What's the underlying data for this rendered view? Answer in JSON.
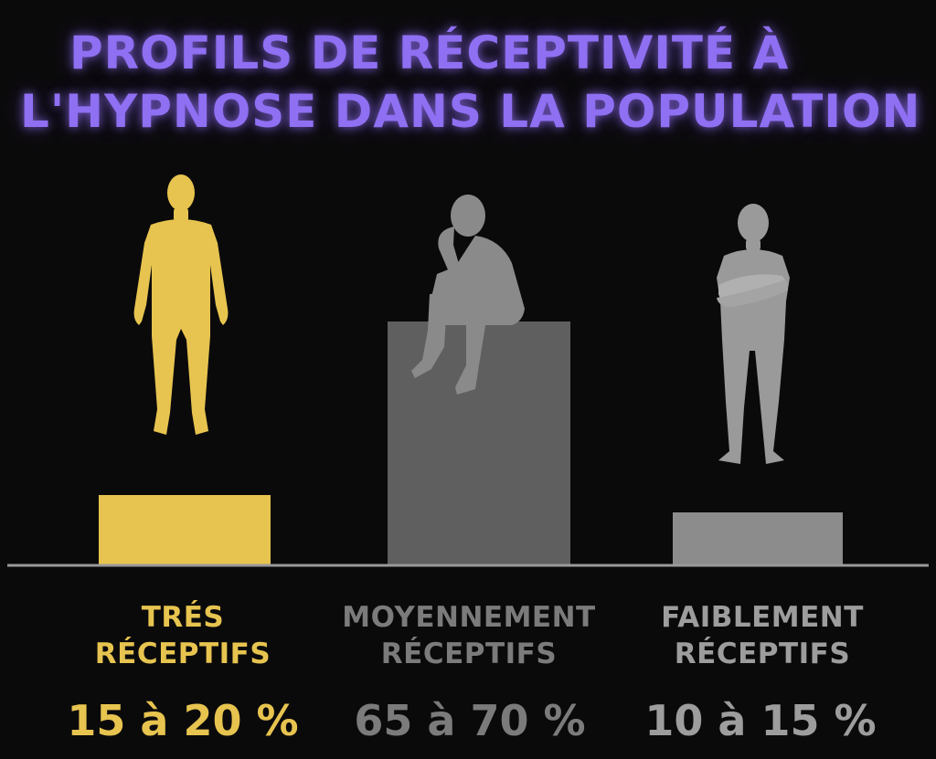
{
  "title": {
    "line1": "PROFILS DE RÉCEPTIVITÉ À",
    "line2": "L'HYPNOSE DANS LA POPULATION"
  },
  "colors": {
    "background": "#0b0a0b",
    "title": "#8f6ff2",
    "baseline": "#9a9a9a"
  },
  "chart_data": {
    "type": "bar",
    "title": "PROFILS DE RÉCEPTIVITÉ À L'HYPNOSE DANS LA POPULATION",
    "categories": [
      {
        "label_line1": "TRÉS",
        "label_line2": "RÉCEPTIFS",
        "value_text": "15 à 20 %",
        "value_min": 15,
        "value_max": 20,
        "bar_color": "#e7c44f",
        "text_color": "#e7c44f",
        "figure": "standing-person-icon",
        "figure_color": "#e7c44f"
      },
      {
        "label_line1": "MOYENNEMENT",
        "label_line2": "RÉCEPTIFS",
        "value_text": "65 à 70 %",
        "value_min": 65,
        "value_max": 70,
        "bar_color": "#5f5f5f",
        "text_color": "#7b7b7b",
        "figure": "thinking-seated-person-icon",
        "figure_color": "#8a8a8a"
      },
      {
        "label_line1": "FAIBLEMENT",
        "label_line2": "RÉCEPTIFS",
        "value_text": "10 à 15 %",
        "value_min": 10,
        "value_max": 15,
        "bar_color": "#8c8c8c",
        "text_color": "#9d9d9d",
        "figure": "crossed-arms-person-icon",
        "figure_color": "#9a9a9a"
      }
    ],
    "xlabel": "",
    "ylabel": "",
    "grid": false,
    "legend": "none"
  }
}
